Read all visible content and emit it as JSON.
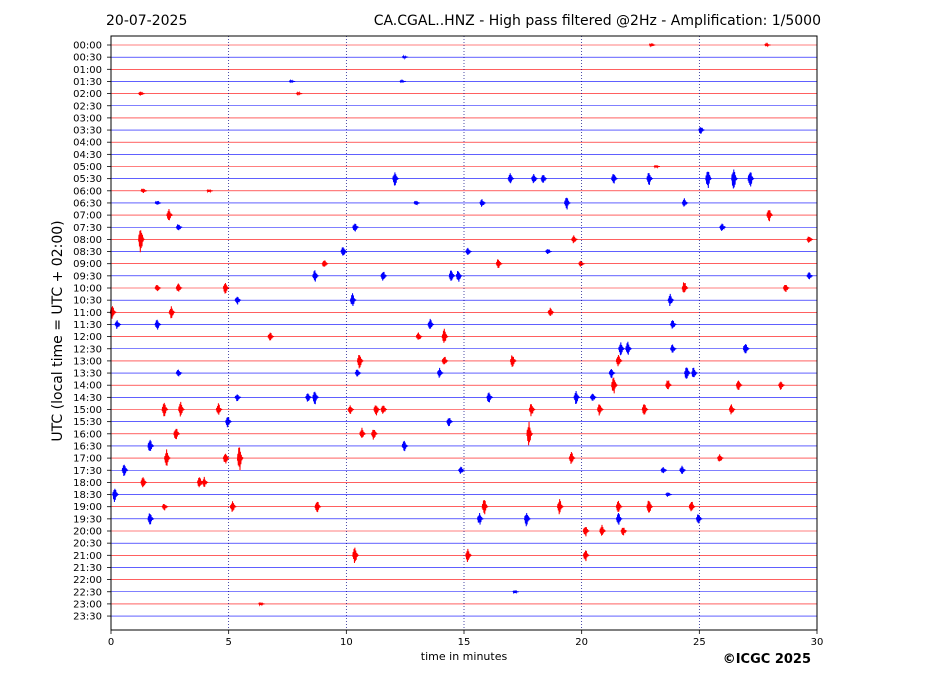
{
  "header": {
    "date": "20-07-2025",
    "title": "CA.CGAL..HNZ - High pass filtered @2Hz - Amplification: 1/5000"
  },
  "footer": {
    "copyright": "©ICGC 2025"
  },
  "colors": {
    "trace_odd": "#ff0000",
    "trace_even": "#0000ff",
    "gridline": "#000080"
  },
  "chart_data": {
    "type": "line",
    "title": "CA.CGAL..HNZ - High pass filtered @2Hz - Amplification: 1/5000",
    "xlabel": "time in minutes",
    "ylabel": "UTC (local time = UTC + 02:00)",
    "xlim": [
      0,
      30
    ],
    "x_ticks": [
      "0",
      "5",
      "10",
      "15",
      "20",
      "25",
      "30"
    ],
    "vertical_gridlines_minutes": [
      5,
      10,
      15,
      20,
      25
    ],
    "grid": "vertical dotted at 5 minute intervals",
    "row_labels": [
      "00:00",
      "00:30",
      "01:00",
      "01:30",
      "02:00",
      "02:30",
      "03:00",
      "03:30",
      "04:00",
      "04:30",
      "05:00",
      "05:30",
      "06:00",
      "06:30",
      "07:00",
      "07:30",
      "08:00",
      "08:30",
      "09:00",
      "09:30",
      "10:00",
      "10:30",
      "11:00",
      "11:30",
      "12:00",
      "12:30",
      "13:00",
      "13:30",
      "14:00",
      "14:30",
      "15:00",
      "15:30",
      "16:00",
      "16:30",
      "17:00",
      "17:30",
      "18:00",
      "18:30",
      "19:00",
      "19:30",
      "20:00",
      "20:30",
      "21:00",
      "21:30",
      "22:00",
      "22:30",
      "23:00",
      "23:30"
    ],
    "trace_colors_alternating": [
      "red",
      "blue"
    ],
    "events": [
      {
        "row": "00:00",
        "minute": 23.0,
        "amp": 0.25
      },
      {
        "row": "00:00",
        "minute": 27.9,
        "amp": 0.15
      },
      {
        "row": "00:30",
        "minute": 12.5,
        "amp": 0.15
      },
      {
        "row": "01:30",
        "minute": 7.7,
        "amp": 0.15
      },
      {
        "row": "01:30",
        "minute": 12.4,
        "amp": 0.15
      },
      {
        "row": "02:00",
        "minute": 1.3,
        "amp": 0.3
      },
      {
        "row": "02:00",
        "minute": 8.0,
        "amp": 0.15
      },
      {
        "row": "03:30",
        "minute": 25.1,
        "amp": 0.5
      },
      {
        "row": "05:00",
        "minute": 23.2,
        "amp": 0.2
      },
      {
        "row": "05:30",
        "minute": 12.1,
        "amp": 1.0
      },
      {
        "row": "05:30",
        "minute": 17.0,
        "amp": 0.8
      },
      {
        "row": "05:30",
        "minute": 18.0,
        "amp": 0.6
      },
      {
        "row": "05:30",
        "minute": 18.4,
        "amp": 0.6
      },
      {
        "row": "05:30",
        "minute": 21.4,
        "amp": 0.8
      },
      {
        "row": "05:30",
        "minute": 22.9,
        "amp": 0.9
      },
      {
        "row": "05:30",
        "minute": 25.4,
        "amp": 1.4
      },
      {
        "row": "05:30",
        "minute": 26.5,
        "amp": 1.6
      },
      {
        "row": "05:30",
        "minute": 27.2,
        "amp": 1.2
      },
      {
        "row": "06:00",
        "minute": 1.4,
        "amp": 0.3
      },
      {
        "row": "06:00",
        "minute": 4.2,
        "amp": 0.2
      },
      {
        "row": "06:30",
        "minute": 2.0,
        "amp": 0.3
      },
      {
        "row": "06:30",
        "minute": 13.0,
        "amp": 0.3
      },
      {
        "row": "06:30",
        "minute": 15.8,
        "amp": 0.5
      },
      {
        "row": "06:30",
        "minute": 19.4,
        "amp": 0.9
      },
      {
        "row": "06:30",
        "minute": 24.4,
        "amp": 0.6
      },
      {
        "row": "07:00",
        "minute": 2.5,
        "amp": 0.8
      },
      {
        "row": "07:00",
        "minute": 28.0,
        "amp": 0.9
      },
      {
        "row": "07:30",
        "minute": 2.9,
        "amp": 0.5
      },
      {
        "row": "07:30",
        "minute": 10.4,
        "amp": 0.6
      },
      {
        "row": "07:30",
        "minute": 26.0,
        "amp": 0.6
      },
      {
        "row": "08:00",
        "minute": 1.3,
        "amp": 1.8
      },
      {
        "row": "08:00",
        "minute": 19.7,
        "amp": 0.6
      },
      {
        "row": "08:00",
        "minute": 29.7,
        "amp": 0.5
      },
      {
        "row": "08:30",
        "minute": 9.9,
        "amp": 0.7
      },
      {
        "row": "08:30",
        "minute": 15.2,
        "amp": 0.5
      },
      {
        "row": "08:30",
        "minute": 18.6,
        "amp": 0.4
      },
      {
        "row": "09:00",
        "minute": 9.1,
        "amp": 0.6
      },
      {
        "row": "09:00",
        "minute": 16.5,
        "amp": 0.7
      },
      {
        "row": "09:00",
        "minute": 20.0,
        "amp": 0.4
      },
      {
        "row": "09:30",
        "minute": 8.7,
        "amp": 0.8
      },
      {
        "row": "09:30",
        "minute": 11.6,
        "amp": 0.7
      },
      {
        "row": "09:30",
        "minute": 14.5,
        "amp": 0.9
      },
      {
        "row": "09:30",
        "minute": 14.8,
        "amp": 0.8
      },
      {
        "row": "09:30",
        "minute": 29.7,
        "amp": 0.5
      },
      {
        "row": "10:00",
        "minute": 2.0,
        "amp": 0.5
      },
      {
        "row": "10:00",
        "minute": 2.9,
        "amp": 0.6
      },
      {
        "row": "10:00",
        "minute": 4.9,
        "amp": 0.8
      },
      {
        "row": "10:00",
        "minute": 24.4,
        "amp": 0.9
      },
      {
        "row": "10:00",
        "minute": 28.7,
        "amp": 0.6
      },
      {
        "row": "10:30",
        "minute": 5.4,
        "amp": 0.6
      },
      {
        "row": "10:30",
        "minute": 10.3,
        "amp": 0.9
      },
      {
        "row": "10:30",
        "minute": 23.8,
        "amp": 0.8
      },
      {
        "row": "11:00",
        "minute": 0.1,
        "amp": 0.9
      },
      {
        "row": "11:00",
        "minute": 2.6,
        "amp": 0.8
      },
      {
        "row": "11:00",
        "minute": 18.7,
        "amp": 0.6
      },
      {
        "row": "11:30",
        "minute": 0.3,
        "amp": 0.6
      },
      {
        "row": "11:30",
        "minute": 2.0,
        "amp": 0.8
      },
      {
        "row": "11:30",
        "minute": 13.6,
        "amp": 0.7
      },
      {
        "row": "11:30",
        "minute": 23.9,
        "amp": 0.6
      },
      {
        "row": "12:00",
        "minute": 6.8,
        "amp": 0.6
      },
      {
        "row": "12:00",
        "minute": 13.1,
        "amp": 0.6
      },
      {
        "row": "12:00",
        "minute": 14.2,
        "amp": 1.0
      },
      {
        "row": "12:30",
        "minute": 21.7,
        "amp": 0.9
      },
      {
        "row": "12:30",
        "minute": 22.0,
        "amp": 0.9
      },
      {
        "row": "12:30",
        "minute": 23.9,
        "amp": 0.6
      },
      {
        "row": "12:30",
        "minute": 27.0,
        "amp": 0.9
      },
      {
        "row": "13:00",
        "minute": 10.6,
        "amp": 1.0
      },
      {
        "row": "13:00",
        "minute": 14.2,
        "amp": 0.7
      },
      {
        "row": "13:00",
        "minute": 17.1,
        "amp": 0.9
      },
      {
        "row": "13:00",
        "minute": 21.6,
        "amp": 0.8
      },
      {
        "row": "13:30",
        "minute": 2.9,
        "amp": 0.5
      },
      {
        "row": "13:30",
        "minute": 10.5,
        "amp": 0.5
      },
      {
        "row": "13:30",
        "minute": 14.0,
        "amp": 0.7
      },
      {
        "row": "13:30",
        "minute": 21.3,
        "amp": 0.7
      },
      {
        "row": "13:30",
        "minute": 24.5,
        "amp": 1.0
      },
      {
        "row": "13:30",
        "minute": 24.8,
        "amp": 0.8
      },
      {
        "row": "14:00",
        "minute": 21.4,
        "amp": 1.2
      },
      {
        "row": "14:00",
        "minute": 23.7,
        "amp": 0.8
      },
      {
        "row": "14:00",
        "minute": 26.7,
        "amp": 0.8
      },
      {
        "row": "14:00",
        "minute": 28.5,
        "amp": 0.6
      },
      {
        "row": "14:30",
        "minute": 5.4,
        "amp": 0.5
      },
      {
        "row": "14:30",
        "minute": 8.4,
        "amp": 0.7
      },
      {
        "row": "14:30",
        "minute": 8.7,
        "amp": 1.0
      },
      {
        "row": "14:30",
        "minute": 16.1,
        "amp": 0.8
      },
      {
        "row": "14:30",
        "minute": 19.8,
        "amp": 0.9
      },
      {
        "row": "14:30",
        "minute": 20.5,
        "amp": 0.6
      },
      {
        "row": "15:00",
        "minute": 2.3,
        "amp": 1.1
      },
      {
        "row": "15:00",
        "minute": 3.0,
        "amp": 1.0
      },
      {
        "row": "15:00",
        "minute": 4.6,
        "amp": 0.8
      },
      {
        "row": "15:00",
        "minute": 10.2,
        "amp": 0.6
      },
      {
        "row": "15:00",
        "minute": 11.3,
        "amp": 0.8
      },
      {
        "row": "15:00",
        "minute": 11.6,
        "amp": 0.7
      },
      {
        "row": "15:00",
        "minute": 17.9,
        "amp": 0.9
      },
      {
        "row": "15:00",
        "minute": 20.8,
        "amp": 0.8
      },
      {
        "row": "15:00",
        "minute": 22.7,
        "amp": 0.8
      },
      {
        "row": "15:00",
        "minute": 26.4,
        "amp": 0.7
      },
      {
        "row": "15:30",
        "minute": 5.0,
        "amp": 0.8
      },
      {
        "row": "15:30",
        "minute": 14.4,
        "amp": 0.7
      },
      {
        "row": "16:00",
        "minute": 2.8,
        "amp": 0.9
      },
      {
        "row": "16:00",
        "minute": 10.7,
        "amp": 0.8
      },
      {
        "row": "16:00",
        "minute": 11.2,
        "amp": 0.8
      },
      {
        "row": "16:00",
        "minute": 17.8,
        "amp": 1.6
      },
      {
        "row": "16:30",
        "minute": 1.7,
        "amp": 1.0
      },
      {
        "row": "16:30",
        "minute": 12.5,
        "amp": 0.7
      },
      {
        "row": "17:00",
        "minute": 2.4,
        "amp": 1.1
      },
      {
        "row": "17:00",
        "minute": 4.9,
        "amp": 0.8
      },
      {
        "row": "17:00",
        "minute": 5.5,
        "amp": 1.7
      },
      {
        "row": "17:00",
        "minute": 19.6,
        "amp": 0.8
      },
      {
        "row": "17:00",
        "minute": 25.9,
        "amp": 0.6
      },
      {
        "row": "17:30",
        "minute": 0.6,
        "amp": 0.9
      },
      {
        "row": "17:30",
        "minute": 14.9,
        "amp": 0.5
      },
      {
        "row": "17:30",
        "minute": 23.5,
        "amp": 0.5
      },
      {
        "row": "17:30",
        "minute": 24.3,
        "amp": 0.6
      },
      {
        "row": "18:00",
        "minute": 1.4,
        "amp": 0.7
      },
      {
        "row": "18:00",
        "minute": 3.8,
        "amp": 0.8
      },
      {
        "row": "18:00",
        "minute": 4.0,
        "amp": 0.7
      },
      {
        "row": "18:30",
        "minute": 0.2,
        "amp": 1.0
      },
      {
        "row": "18:30",
        "minute": 23.7,
        "amp": 0.3
      },
      {
        "row": "19:00",
        "minute": 2.3,
        "amp": 0.5
      },
      {
        "row": "19:00",
        "minute": 5.2,
        "amp": 0.8
      },
      {
        "row": "19:00",
        "minute": 8.8,
        "amp": 0.8
      },
      {
        "row": "19:00",
        "minute": 15.9,
        "amp": 1.1
      },
      {
        "row": "19:00",
        "minute": 19.1,
        "amp": 1.0
      },
      {
        "row": "19:00",
        "minute": 21.6,
        "amp": 0.8
      },
      {
        "row": "19:00",
        "minute": 22.9,
        "amp": 1.0
      },
      {
        "row": "19:00",
        "minute": 24.7,
        "amp": 0.8
      },
      {
        "row": "19:30",
        "minute": 1.7,
        "amp": 0.9
      },
      {
        "row": "19:30",
        "minute": 15.7,
        "amp": 0.8
      },
      {
        "row": "19:30",
        "minute": 17.7,
        "amp": 1.0
      },
      {
        "row": "19:30",
        "minute": 21.6,
        "amp": 0.8
      },
      {
        "row": "19:30",
        "minute": 25.0,
        "amp": 0.7
      },
      {
        "row": "20:00",
        "minute": 20.2,
        "amp": 0.8
      },
      {
        "row": "20:00",
        "minute": 20.9,
        "amp": 0.8
      },
      {
        "row": "20:00",
        "minute": 21.8,
        "amp": 0.6
      },
      {
        "row": "21:00",
        "minute": 10.4,
        "amp": 1.1
      },
      {
        "row": "21:00",
        "minute": 15.2,
        "amp": 0.9
      },
      {
        "row": "21:00",
        "minute": 20.2,
        "amp": 0.8
      },
      {
        "row": "22:30",
        "minute": 17.2,
        "amp": 0.2
      },
      {
        "row": "23:00",
        "minute": 6.4,
        "amp": 0.2
      }
    ]
  }
}
